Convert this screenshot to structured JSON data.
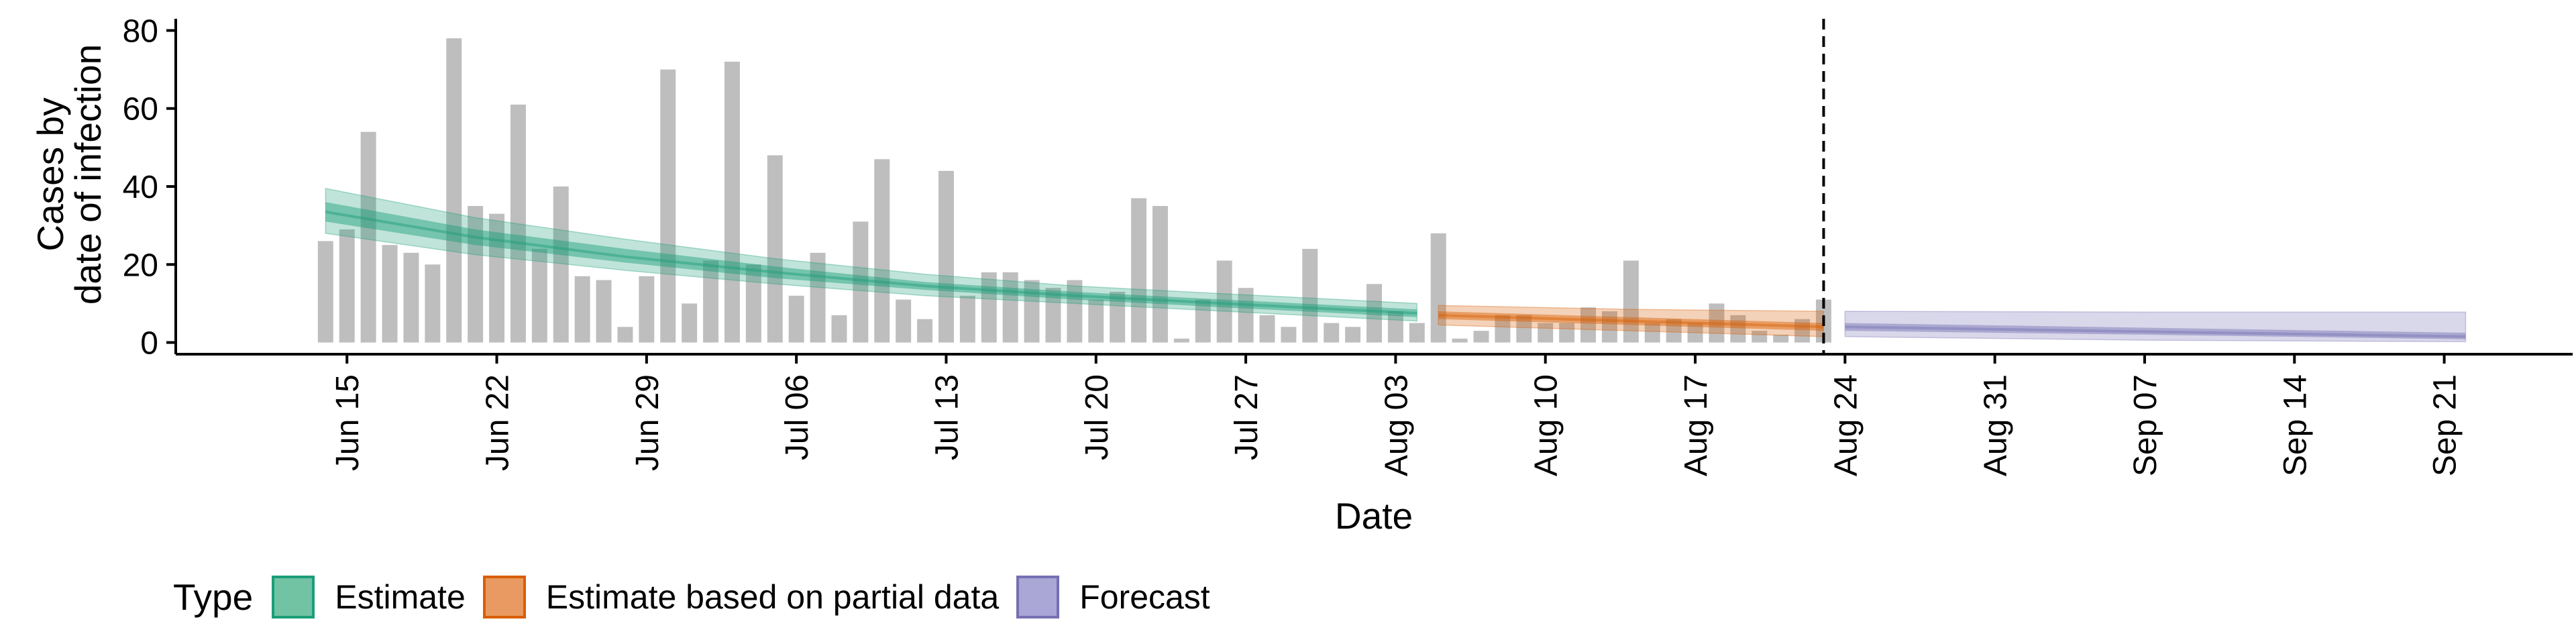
{
  "chart_data": {
    "type": "bar",
    "title": "",
    "xlabel": "Date",
    "ylabel_lines": [
      "Cases by",
      "date of infection"
    ],
    "ylim": [
      -3,
      83
    ],
    "xlim": [
      "2020-06-07",
      "2020-09-27"
    ],
    "y_ticks": [
      0,
      20,
      40,
      60,
      80
    ],
    "x_ticks": [
      {
        "date": "2020-06-15",
        "label": "Jun 15"
      },
      {
        "date": "2020-06-22",
        "label": "Jun 22"
      },
      {
        "date": "2020-06-29",
        "label": "Jun 29"
      },
      {
        "date": "2020-07-06",
        "label": "Jul 06"
      },
      {
        "date": "2020-07-13",
        "label": "Jul 13"
      },
      {
        "date": "2020-07-20",
        "label": "Jul 20"
      },
      {
        "date": "2020-07-27",
        "label": "Jul 27"
      },
      {
        "date": "2020-08-03",
        "label": "Aug 03"
      },
      {
        "date": "2020-08-10",
        "label": "Aug 10"
      },
      {
        "date": "2020-08-17",
        "label": "Aug 17"
      },
      {
        "date": "2020-08-24",
        "label": "Aug 24"
      },
      {
        "date": "2020-08-31",
        "label": "Aug 31"
      },
      {
        "date": "2020-09-07",
        "label": "Sep 07"
      },
      {
        "date": "2020-09-14",
        "label": "Sep 14"
      },
      {
        "date": "2020-09-21",
        "label": "Sep 21"
      }
    ],
    "reference_line_date": "2020-08-23",
    "bars": {
      "start_date": "2020-06-14",
      "color": "#bebebe",
      "values": [
        26,
        29,
        54,
        25,
        23,
        20,
        78,
        35,
        33,
        61,
        24,
        40,
        17,
        16,
        4,
        17,
        70,
        10,
        21,
        72,
        20,
        48,
        12,
        23,
        7,
        31,
        47,
        11,
        6,
        44,
        12,
        18,
        18,
        16,
        14,
        16,
        11,
        13,
        37,
        35,
        1,
        11,
        21,
        14,
        7,
        4,
        24,
        5,
        4,
        15,
        8,
        5,
        28,
        1,
        3,
        7,
        7,
        5,
        5,
        9,
        8,
        21,
        5,
        6,
        5,
        10,
        7,
        3,
        2,
        6,
        11
      ]
    },
    "series": [
      {
        "name": "Estimate",
        "fill": "#1b9e77",
        "edge": "#1b9e77",
        "points": [
          {
            "date": "2020-06-14",
            "median": 33.5,
            "lo50": 31,
            "hi50": 36,
            "lo90": 28,
            "hi90": 39.5
          },
          {
            "date": "2020-06-21",
            "median": 27,
            "lo50": 25,
            "hi50": 29,
            "lo90": 22.5,
            "hi90": 32
          },
          {
            "date": "2020-06-28",
            "median": 22,
            "lo50": 20.5,
            "hi50": 24,
            "lo90": 18.5,
            "hi90": 26.5
          },
          {
            "date": "2020-07-05",
            "median": 18,
            "lo50": 16.5,
            "hi50": 19.5,
            "lo90": 15,
            "hi90": 21.5
          },
          {
            "date": "2020-07-12",
            "median": 14.5,
            "lo50": 13.5,
            "hi50": 15.5,
            "lo90": 12,
            "hi90": 17.5
          },
          {
            "date": "2020-07-19",
            "median": 12,
            "lo50": 11,
            "hi50": 13,
            "lo90": 10,
            "hi90": 14.5
          },
          {
            "date": "2020-07-26",
            "median": 10,
            "lo50": 9,
            "hi50": 11,
            "lo90": 8,
            "hi90": 12.5
          },
          {
            "date": "2020-08-04",
            "median": 7.5,
            "lo50": 6.5,
            "hi50": 8.5,
            "lo90": 5.5,
            "hi90": 10
          }
        ]
      },
      {
        "name": "Estimate based on partial data",
        "fill": "#d95f02",
        "edge": "#d95f02",
        "points": [
          {
            "date": "2020-08-05",
            "median": 7,
            "lo50": 6,
            "hi50": 8,
            "lo90": 4.5,
            "hi90": 9.5
          },
          {
            "date": "2020-08-14",
            "median": 5.5,
            "lo50": 4.5,
            "hi50": 6.5,
            "lo90": 3,
            "hi90": 8.5
          },
          {
            "date": "2020-08-23",
            "median": 4,
            "lo50": 3,
            "hi50": 5,
            "lo90": 1.5,
            "hi90": 8
          }
        ]
      },
      {
        "name": "Forecast",
        "fill": "#7570b3",
        "edge": "#7570b3",
        "points": [
          {
            "date": "2020-08-24",
            "median": 4,
            "lo50": 3,
            "hi50": 5,
            "lo90": 1.5,
            "hi90": 8
          },
          {
            "date": "2020-09-07",
            "median": 2.8,
            "lo50": 2,
            "hi50": 3.8,
            "lo90": 0.6,
            "hi90": 7.8
          },
          {
            "date": "2020-09-22",
            "median": 1.5,
            "lo50": 0.8,
            "hi50": 2.5,
            "lo90": 0.2,
            "hi90": 7.8
          }
        ]
      }
    ],
    "legend": {
      "title": "Type",
      "placement": "bottom-left",
      "entries": [
        {
          "label": "Estimate",
          "fill": "#72c2a4",
          "edge": "#1b9e77"
        },
        {
          "label": "Estimate based on partial data",
          "fill": "#e99a62",
          "edge": "#d95f02"
        },
        {
          "label": "Forecast",
          "fill": "#aaa6d5",
          "edge": "#7570b3"
        }
      ]
    },
    "grid": false
  }
}
